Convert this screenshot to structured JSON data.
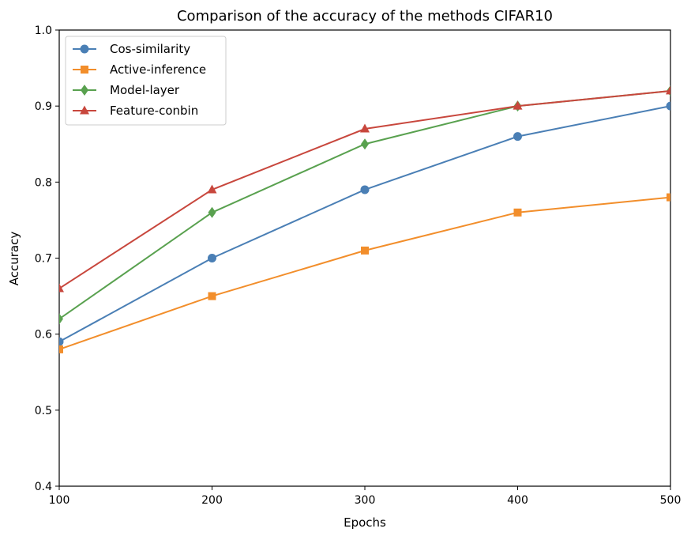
{
  "chart_data": {
    "type": "line",
    "title": "Comparison of the accuracy of the methods CIFAR10",
    "xlabel": "Epochs",
    "ylabel": "Accuracy",
    "x": [
      100,
      200,
      300,
      400,
      500
    ],
    "xlim": [
      100,
      500
    ],
    "ylim": [
      0.4,
      1.0
    ],
    "xticks": [
      100,
      200,
      300,
      400,
      500
    ],
    "yticks": [
      0.4,
      0.5,
      0.6,
      0.7,
      0.8,
      0.9,
      1.0
    ],
    "xtick_labels": [
      "100",
      "200",
      "300",
      "400",
      "500"
    ],
    "ytick_labels": [
      "0.4",
      "0.5",
      "0.6",
      "0.7",
      "0.8",
      "0.9",
      "1.0"
    ],
    "grid": false,
    "legend_position": "upper-left",
    "series": [
      {
        "name": "Cos-similarity",
        "values": [
          0.59,
          0.7,
          0.79,
          0.86,
          0.9
        ],
        "color": "#4a7fb5",
        "marker": "circle"
      },
      {
        "name": "Active-inference",
        "values": [
          0.58,
          0.65,
          0.71,
          0.76,
          0.78
        ],
        "color": "#f28e2b",
        "marker": "square"
      },
      {
        "name": "Model-layer",
        "values": [
          0.62,
          0.76,
          0.85,
          0.9,
          0.92
        ],
        "color": "#59a14f",
        "marker": "diamond"
      },
      {
        "name": "Feature-conbin",
        "values": [
          0.66,
          0.79,
          0.87,
          0.9,
          0.92
        ],
        "color": "#c8473d",
        "marker": "triangle"
      }
    ]
  }
}
